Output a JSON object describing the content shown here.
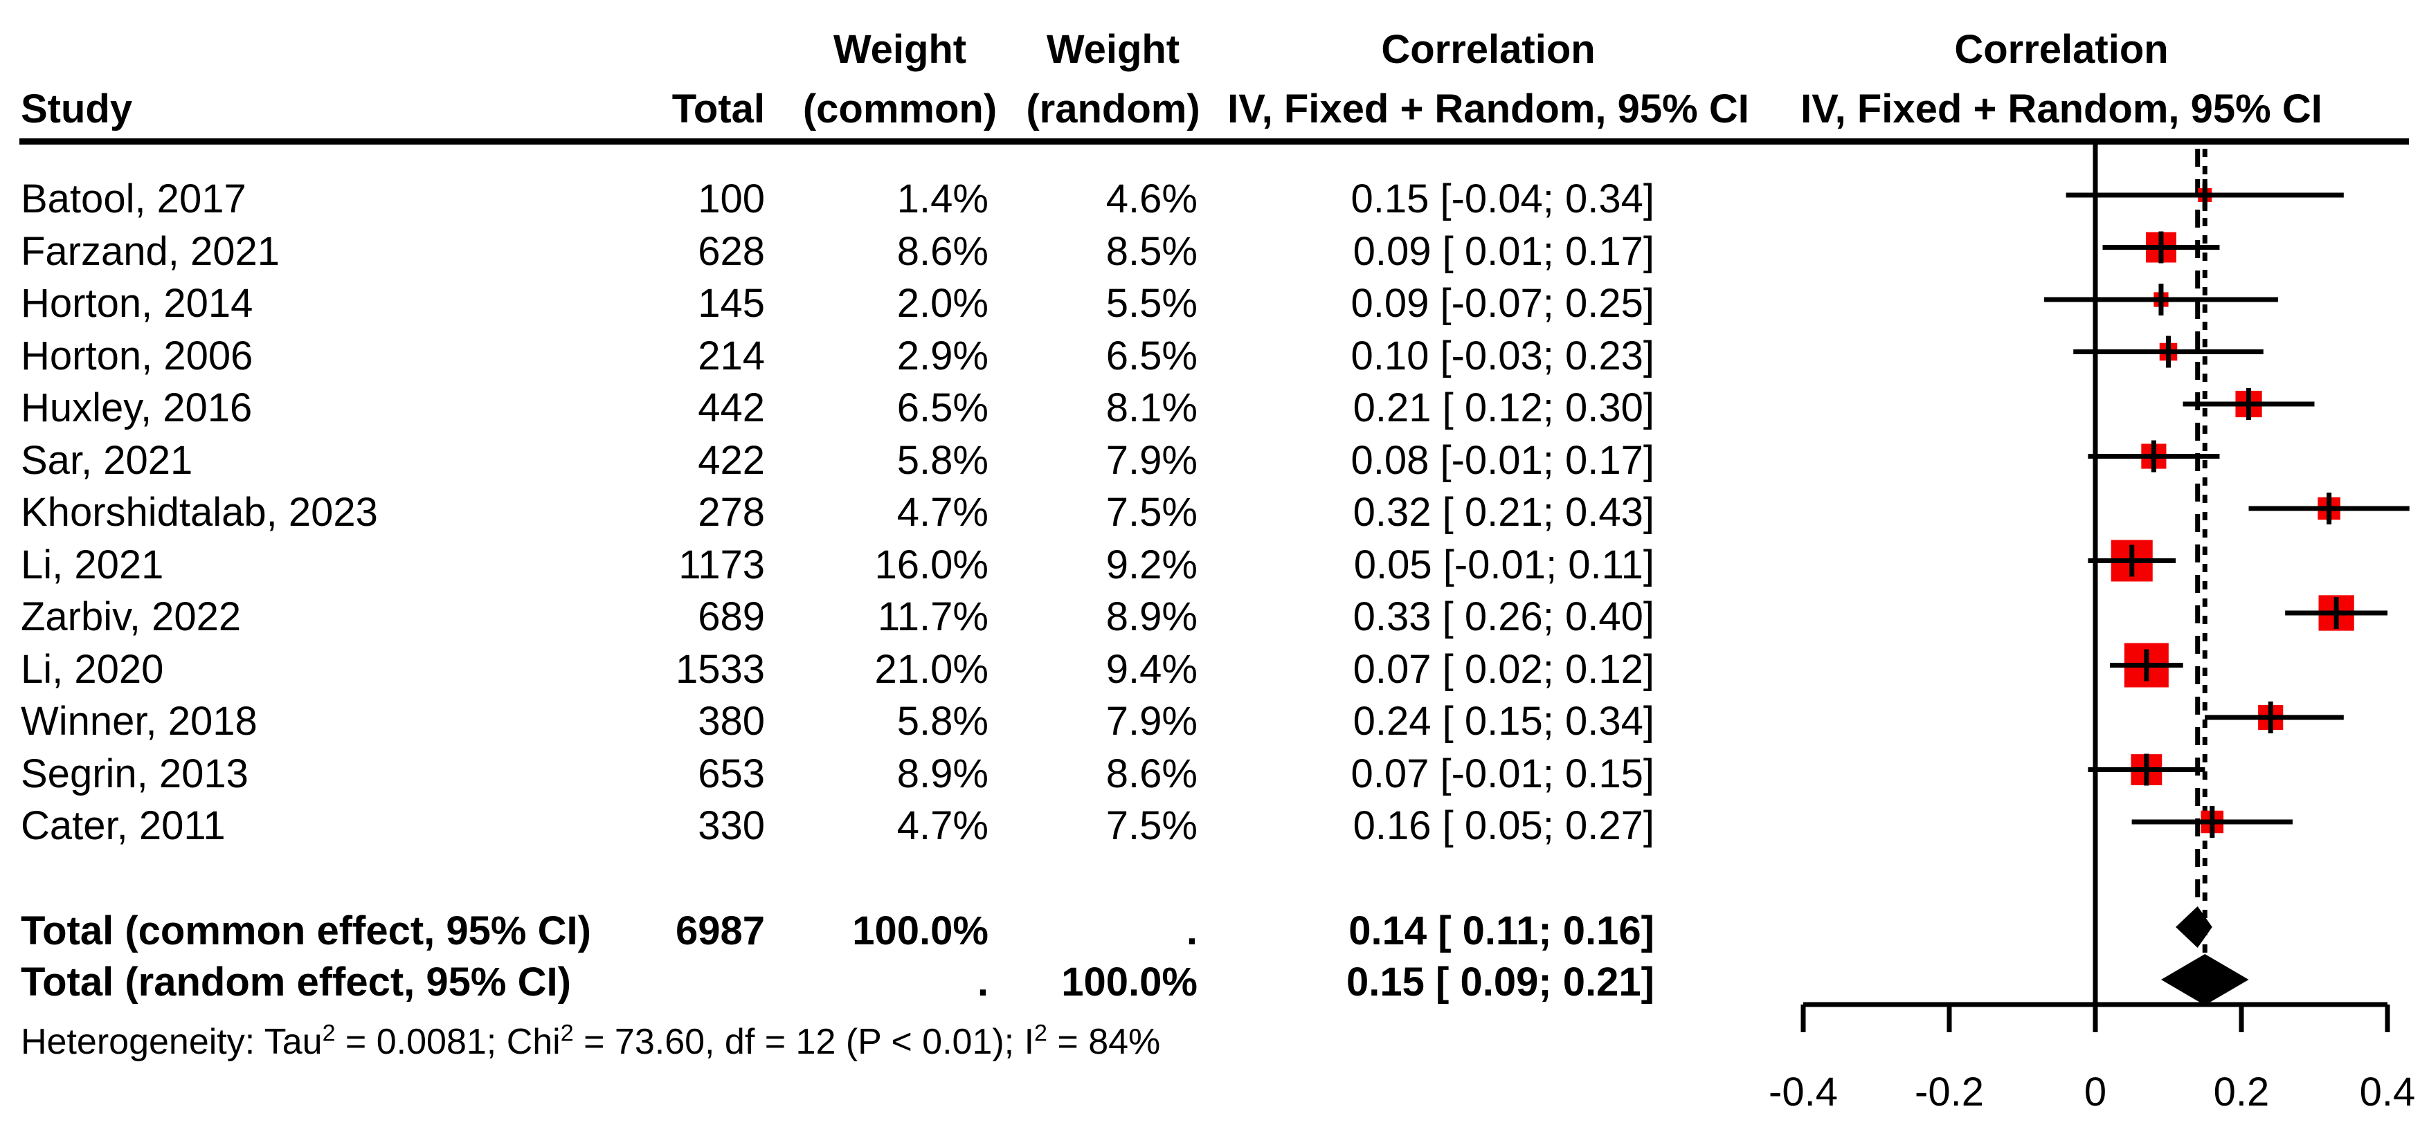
{
  "header": {
    "col_study": "Study",
    "col_total": "Total",
    "col_weight_line1": "Weight",
    "col_weight_common_line2": "(common)",
    "col_weight_random_line2": "(random)",
    "col_corr_line1": "Correlation",
    "col_corr_line2": "IV, Fixed + Random, 95% CI",
    "col_plot_line1": "Correlation",
    "col_plot_line2": "IV, Fixed + Random, 95% CI"
  },
  "studies": [
    {
      "name": "Batool, 2017",
      "total": "100",
      "weight_common": "1.4%",
      "weight_random": "4.6%",
      "ci_label": "0.15 [-0.04; 0.34]",
      "estimate": 0.15,
      "lower": -0.04,
      "upper": 0.34,
      "wc": 1.4
    },
    {
      "name": "Farzand, 2021",
      "total": "628",
      "weight_common": "8.6%",
      "weight_random": "8.5%",
      "ci_label": "0.09 [ 0.01; 0.17]",
      "estimate": 0.09,
      "lower": 0.01,
      "upper": 0.17,
      "wc": 8.6
    },
    {
      "name": "Horton, 2014",
      "total": "145",
      "weight_common": "2.0%",
      "weight_random": "5.5%",
      "ci_label": "0.09 [-0.07; 0.25]",
      "estimate": 0.09,
      "lower": -0.07,
      "upper": 0.25,
      "wc": 2.0
    },
    {
      "name": "Horton, 2006",
      "total": "214",
      "weight_common": "2.9%",
      "weight_random": "6.5%",
      "ci_label": "0.10 [-0.03; 0.23]",
      "estimate": 0.1,
      "lower": -0.03,
      "upper": 0.23,
      "wc": 2.9
    },
    {
      "name": "Huxley, 2016",
      "total": "442",
      "weight_common": "6.5%",
      "weight_random": "8.1%",
      "ci_label": "0.21 [ 0.12; 0.30]",
      "estimate": 0.21,
      "lower": 0.12,
      "upper": 0.3,
      "wc": 6.5
    },
    {
      "name": "Sar, 2021",
      "total": "422",
      "weight_common": "5.8%",
      "weight_random": "7.9%",
      "ci_label": "0.08 [-0.01; 0.17]",
      "estimate": 0.08,
      "lower": -0.01,
      "upper": 0.17,
      "wc": 5.8
    },
    {
      "name": "Khorshidtalab, 2023",
      "total": "278",
      "weight_common": "4.7%",
      "weight_random": "7.5%",
      "ci_label": "0.32 [ 0.21; 0.43]",
      "estimate": 0.32,
      "lower": 0.21,
      "upper": 0.43,
      "wc": 4.7
    },
    {
      "name": "Li, 2021",
      "total": "1173",
      "weight_common": "16.0%",
      "weight_random": "9.2%",
      "ci_label": "0.05 [-0.01; 0.11]",
      "estimate": 0.05,
      "lower": -0.01,
      "upper": 0.11,
      "wc": 16.0
    },
    {
      "name": "Zarbiv, 2022",
      "total": "689",
      "weight_common": "11.7%",
      "weight_random": "8.9%",
      "ci_label": "0.33 [ 0.26; 0.40]",
      "estimate": 0.33,
      "lower": 0.26,
      "upper": 0.4,
      "wc": 11.7
    },
    {
      "name": "Li, 2020",
      "total": "1533",
      "weight_common": "21.0%",
      "weight_random": "9.4%",
      "ci_label": "0.07 [ 0.02; 0.12]",
      "estimate": 0.07,
      "lower": 0.02,
      "upper": 0.12,
      "wc": 21.0
    },
    {
      "name": "Winner, 2018",
      "total": "380",
      "weight_common": "5.8%",
      "weight_random": "7.9%",
      "ci_label": "0.24 [ 0.15; 0.34]",
      "estimate": 0.24,
      "lower": 0.15,
      "upper": 0.34,
      "wc": 5.8
    },
    {
      "name": "Segrin, 2013",
      "total": "653",
      "weight_common": "8.9%",
      "weight_random": "8.6%",
      "ci_label": "0.07 [-0.01; 0.15]",
      "estimate": 0.07,
      "lower": -0.01,
      "upper": 0.15,
      "wc": 8.9
    },
    {
      "name": "Cater, 2011",
      "total": "330",
      "weight_common": "4.7%",
      "weight_random": "7.5%",
      "ci_label": "0.16 [ 0.05; 0.27]",
      "estimate": 0.16,
      "lower": 0.05,
      "upper": 0.27,
      "wc": 4.7
    }
  ],
  "totals": [
    {
      "label": "Total (common effect, 95% CI)",
      "total": "6987",
      "weight_common": "100.0%",
      "weight_random": ".",
      "ci_label": "0.14 [ 0.11; 0.16]",
      "estimate": 0.14,
      "lower": 0.11,
      "upper": 0.16,
      "kind": "common"
    },
    {
      "label": "Total (random effect, 95% CI)",
      "total": "",
      "weight_common": ".",
      "weight_random": "100.0%",
      "ci_label": "0.15 [ 0.09; 0.21]",
      "estimate": 0.15,
      "lower": 0.09,
      "upper": 0.21,
      "kind": "random"
    }
  ],
  "heterogeneity": {
    "p1": "Heterogeneity: Tau",
    "s1": "2",
    "p2": " = 0.0081; Chi",
    "s2": "2",
    "p3": " = 73.60, df = 12 (P < 0.01); I",
    "s3": "2",
    "p4": " = 84%"
  },
  "plot": {
    "axis_ticks": [
      -0.4,
      -0.2,
      0,
      0.2,
      0.4
    ],
    "axis_tick_labels": [
      "-0.4",
      "-0.2",
      "0",
      "0.2",
      "0.4"
    ],
    "reference_line": 0,
    "common_effect_line": 0.14,
    "random_effect_line": 0.15,
    "marker_color": "#f40000",
    "line_color": "#000000"
  },
  "chart_data": {
    "type": "scatter",
    "subtype": "forest-plot",
    "title": "Correlation — IV, Fixed + Random, 95% CI",
    "xlabel": "Correlation",
    "xlim": [
      -0.4,
      0.4
    ],
    "x_ticks": [
      -0.4,
      -0.2,
      0,
      0.2,
      0.4
    ],
    "reference_line_x": 0,
    "pooled_common": {
      "estimate": 0.14,
      "lower": 0.11,
      "upper": 0.16,
      "total": 6987,
      "weight_common": "100.0%"
    },
    "pooled_random": {
      "estimate": 0.15,
      "lower": 0.09,
      "upper": 0.21,
      "weight_random": "100.0%"
    },
    "heterogeneity": {
      "tau2": 0.0081,
      "chi2": 73.6,
      "df": 12,
      "p": "< 0.01",
      "i2": "84%"
    },
    "series": [
      {
        "name": "Batool, 2017",
        "total": 100,
        "weight_common_pct": 1.4,
        "weight_random_pct": 4.6,
        "estimate": 0.15,
        "lower": -0.04,
        "upper": 0.34
      },
      {
        "name": "Farzand, 2021",
        "total": 628,
        "weight_common_pct": 8.6,
        "weight_random_pct": 8.5,
        "estimate": 0.09,
        "lower": 0.01,
        "upper": 0.17
      },
      {
        "name": "Horton, 2014",
        "total": 145,
        "weight_common_pct": 2.0,
        "weight_random_pct": 5.5,
        "estimate": 0.09,
        "lower": -0.07,
        "upper": 0.25
      },
      {
        "name": "Horton, 2006",
        "total": 214,
        "weight_common_pct": 2.9,
        "weight_random_pct": 6.5,
        "estimate": 0.1,
        "lower": -0.03,
        "upper": 0.23
      },
      {
        "name": "Huxley, 2016",
        "total": 442,
        "weight_common_pct": 6.5,
        "weight_random_pct": 8.1,
        "estimate": 0.21,
        "lower": 0.12,
        "upper": 0.3
      },
      {
        "name": "Sar, 2021",
        "total": 422,
        "weight_common_pct": 5.8,
        "weight_random_pct": 7.9,
        "estimate": 0.08,
        "lower": -0.01,
        "upper": 0.17
      },
      {
        "name": "Khorshidtalab, 2023",
        "total": 278,
        "weight_common_pct": 4.7,
        "weight_random_pct": 7.5,
        "estimate": 0.32,
        "lower": 0.21,
        "upper": 0.43
      },
      {
        "name": "Li, 2021",
        "total": 1173,
        "weight_common_pct": 16.0,
        "weight_random_pct": 9.2,
        "estimate": 0.05,
        "lower": -0.01,
        "upper": 0.11
      },
      {
        "name": "Zarbiv, 2022",
        "total": 689,
        "weight_common_pct": 11.7,
        "weight_random_pct": 8.9,
        "estimate": 0.33,
        "lower": 0.26,
        "upper": 0.4
      },
      {
        "name": "Li, 2020",
        "total": 1533,
        "weight_common_pct": 21.0,
        "weight_random_pct": 9.4,
        "estimate": 0.07,
        "lower": 0.02,
        "upper": 0.12
      },
      {
        "name": "Winner, 2018",
        "total": 380,
        "weight_common_pct": 5.8,
        "weight_random_pct": 7.9,
        "estimate": 0.24,
        "lower": 0.15,
        "upper": 0.34
      },
      {
        "name": "Segrin, 2013",
        "total": 653,
        "weight_common_pct": 8.9,
        "weight_random_pct": 8.6,
        "estimate": 0.07,
        "lower": -0.01,
        "upper": 0.15
      },
      {
        "name": "Cater, 2011",
        "total": 330,
        "weight_common_pct": 4.7,
        "weight_random_pct": 7.5,
        "estimate": 0.16,
        "lower": 0.05,
        "upper": 0.27
      }
    ],
    "legend_position": "none",
    "grid": false
  }
}
